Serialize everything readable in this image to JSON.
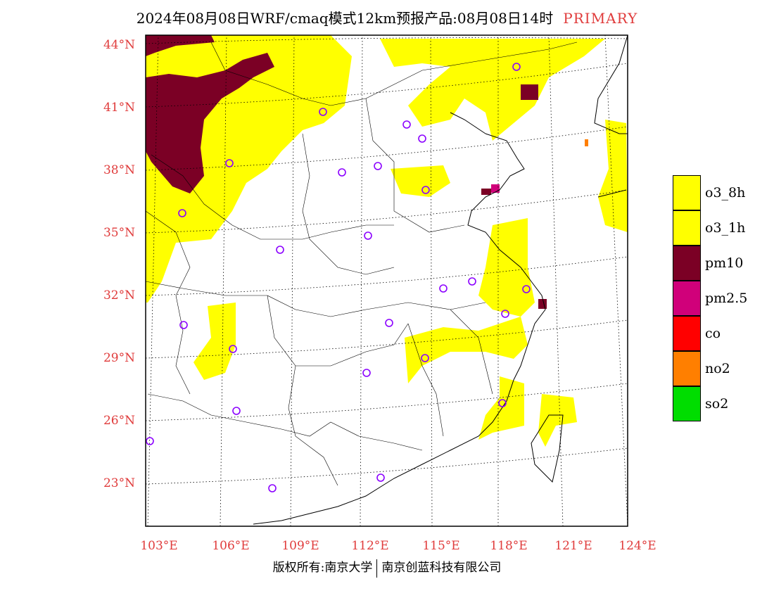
{
  "header": {
    "title": "2024年08月08日WRF/cmaq模式12km预报产品:08月08日14时",
    "tag": "PRIMARY"
  },
  "axes": {
    "lat_labels": [
      "44°N",
      "41°N",
      "38°N",
      "35°N",
      "32°N",
      "29°N",
      "26°N",
      "23°N"
    ],
    "lon_labels": [
      "103°E",
      "106°E",
      "109°E",
      "112°E",
      "115°E",
      "118°E",
      "121°E",
      "124°E"
    ]
  },
  "legend": {
    "items": [
      {
        "label": "o3_8h",
        "color": "#ffff00"
      },
      {
        "label": "o3_1h",
        "color": "#ffff00"
      },
      {
        "label": "pm10",
        "color": "#7b0025"
      },
      {
        "label": "pm2.5",
        "color": "#d0007a"
      },
      {
        "label": "co",
        "color": "#ff0000"
      },
      {
        "label": "no2",
        "color": "#ff7f00"
      },
      {
        "label": "so2",
        "color": "#00dd00"
      }
    ]
  },
  "footer": {
    "left": "版权所有:南京大学",
    "right": "南京创蓝科技有限公司"
  }
}
